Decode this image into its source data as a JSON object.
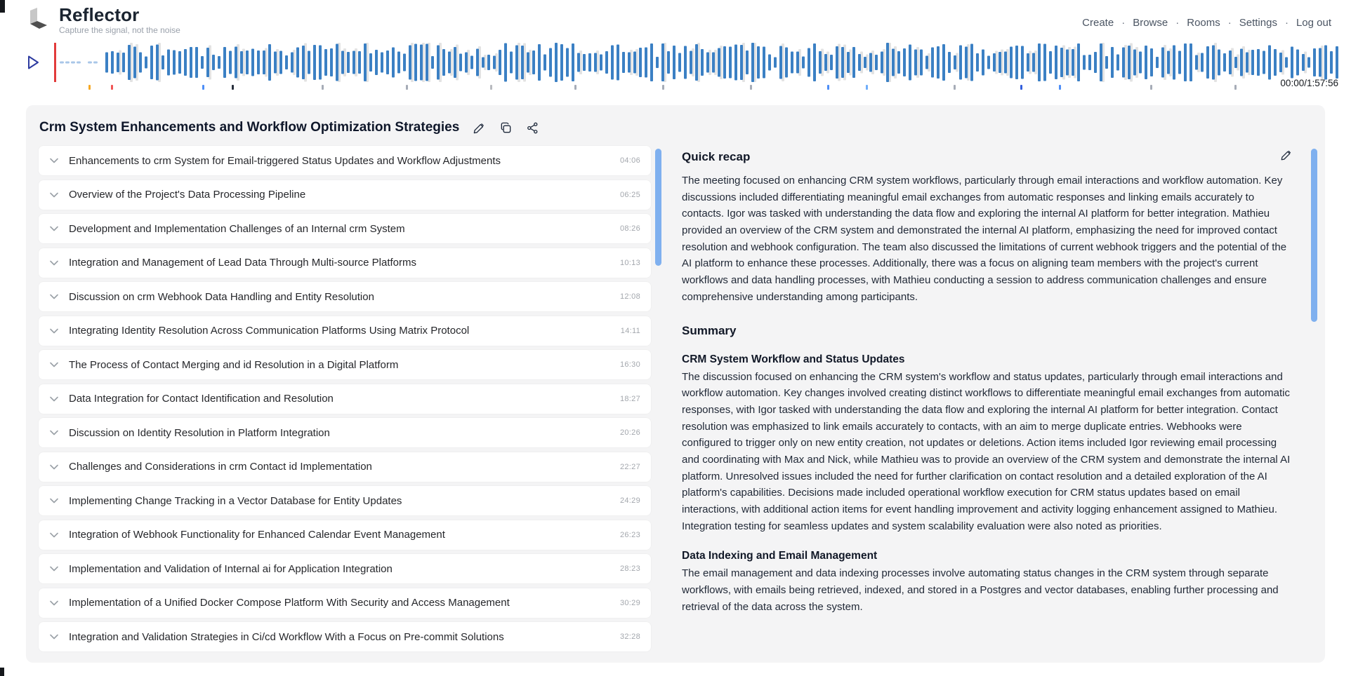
{
  "header": {
    "brand": "Reflector",
    "tagline": "Capture the signal, not the noise",
    "nav": [
      {
        "label": "Create"
      },
      {
        "label": "Browse"
      },
      {
        "label": "Rooms"
      },
      {
        "label": "Settings"
      },
      {
        "label": "Log out"
      }
    ],
    "nav_separator": "·"
  },
  "player": {
    "time_label": "00:00/1:57:56"
  },
  "recording": {
    "title": "Crm System Enhancements and Workflow Optimization Strategies"
  },
  "topics": [
    {
      "label": "Enhancements to crm System for Email-triggered Status Updates and Workflow Adjustments",
      "time": "04:06"
    },
    {
      "label": "Overview of the Project's Data Processing Pipeline",
      "time": "06:25"
    },
    {
      "label": "Development and Implementation Challenges of an Internal crm System",
      "time": "08:26"
    },
    {
      "label": "Integration and Management of Lead Data Through Multi-source Platforms",
      "time": "10:13"
    },
    {
      "label": "Discussion on crm Webhook Data Handling and Entity Resolution",
      "time": "12:08"
    },
    {
      "label": "Integrating Identity Resolution Across Communication Platforms Using Matrix Protocol",
      "time": "14:11"
    },
    {
      "label": "The Process of Contact Merging and id Resolution in a Digital Platform",
      "time": "16:30"
    },
    {
      "label": "Data Integration for Contact Identification and Resolution",
      "time": "18:27"
    },
    {
      "label": "Discussion on Identity Resolution in Platform Integration",
      "time": "20:26"
    },
    {
      "label": "Challenges and Considerations in crm Contact id Implementation",
      "time": "22:27"
    },
    {
      "label": "Implementing Change Tracking in a Vector Database for Entity Updates",
      "time": "24:29"
    },
    {
      "label": "Integration of Webhook Functionality for Enhanced Calendar Event Management",
      "time": "26:23"
    },
    {
      "label": "Implementation and Validation of Internal ai for Application Integration",
      "time": "28:23"
    },
    {
      "label": "Implementation of a Unified Docker Compose Platform With Security and Access Management",
      "time": "30:29"
    },
    {
      "label": "Integration and Validation Strategies in Ci/cd Workflow With a Focus on Pre-commit Solutions",
      "time": "32:28"
    }
  ],
  "panel": {
    "quick_recap_title": "Quick recap",
    "quick_recap": "The meeting focused on enhancing CRM system workflows, particularly through email interactions and workflow automation. Key discussions included differentiating meaningful email exchanges from automatic responses and linking emails accurately to contacts. Igor was tasked with understanding the data flow and exploring the internal AI platform for better integration. Mathieu provided an overview of the CRM system and demonstrated the internal AI platform, emphasizing the need for improved contact resolution and webhook configuration. The team also discussed the limitations of current webhook triggers and the potential of the AI platform to enhance these processes. Additionally, there was a focus on aligning team members with the project's current workflows and data handling processes, with Mathieu conducting a session to address communication challenges and ensure comprehensive understanding among participants.",
    "summary_title": "Summary",
    "sections": [
      {
        "heading": "CRM System Workflow and Status Updates",
        "body": "The discussion focused on enhancing the CRM system's workflow and status updates, particularly through email interactions and workflow automation. Key changes involved creating distinct workflows to differentiate meaningful email exchanges from automatic responses, with Igor tasked with understanding the data flow and exploring the internal AI platform for better integration. Contact resolution was emphasized to link emails accurately to contacts, with an aim to merge duplicate entries. Webhooks were configured to trigger only on new entity creation, not updates or deletions. Action items included Igor reviewing email processing and coordinating with Max and Nick, while Mathieu was to provide an overview of the CRM system and demonstrate the internal AI platform. Unresolved issues included the need for further clarification on contact resolution and a detailed exploration of the AI platform's capabilities. Decisions made included operational workflow execution for CRM status updates based on email interactions, with additional action items for event handling improvement and activity logging enhancement assigned to Mathieu. Integration testing for seamless updates and system scalability evaluation were also noted as priorities."
      },
      {
        "heading": "Data Indexing and Email Management",
        "body": "The email management and data indexing processes involve automating status changes in the CRM system through separate workflows, with emails being retrieved, indexed, and stored in a Postgres and vector databases, enabling further processing and retrieval of the data across the system."
      }
    ]
  },
  "icons": {
    "edit": "pencil",
    "copy": "copy",
    "share": "share-nodes",
    "play": "play-outline",
    "expand": "chevron-down"
  },
  "colors": {
    "waveform_blue": "#3b80c4",
    "playhead_red": "#e23b3b",
    "scrollbar_blue": "#7fb0ef",
    "card_background": "#f4f4f5",
    "text_dark": "#111827",
    "text_muted": "#9ca3af"
  }
}
